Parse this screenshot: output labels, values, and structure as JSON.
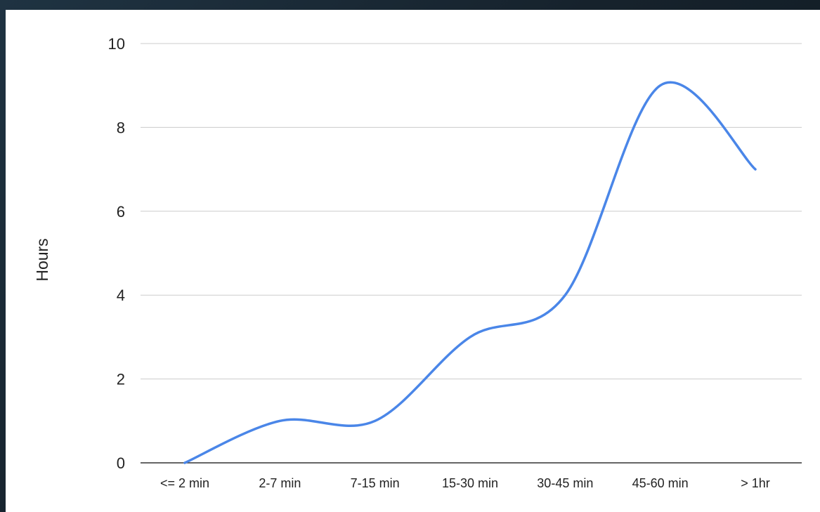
{
  "colors": {
    "background": "#1c2833",
    "plot_background": "#ffffff",
    "line": "#4a86e8",
    "grid": "#cccccc",
    "axis": "#333333",
    "text": "#222222"
  },
  "chart_data": {
    "type": "line",
    "title": "",
    "xlabel": "",
    "ylabel": "Hours",
    "categories": [
      "<= 2 min",
      "2-7 min",
      "7-15 min",
      "15-30 min",
      "30-45 min",
      "45-60 min",
      "> 1hr"
    ],
    "series": [
      {
        "values": [
          0,
          1,
          1,
          3,
          4,
          9,
          7
        ]
      }
    ],
    "ylim": [
      0,
      10
    ],
    "yticks": [
      "0",
      "2",
      "4",
      "6",
      "8",
      "10"
    ],
    "smooth": true,
    "grid": true,
    "legend": "none"
  }
}
